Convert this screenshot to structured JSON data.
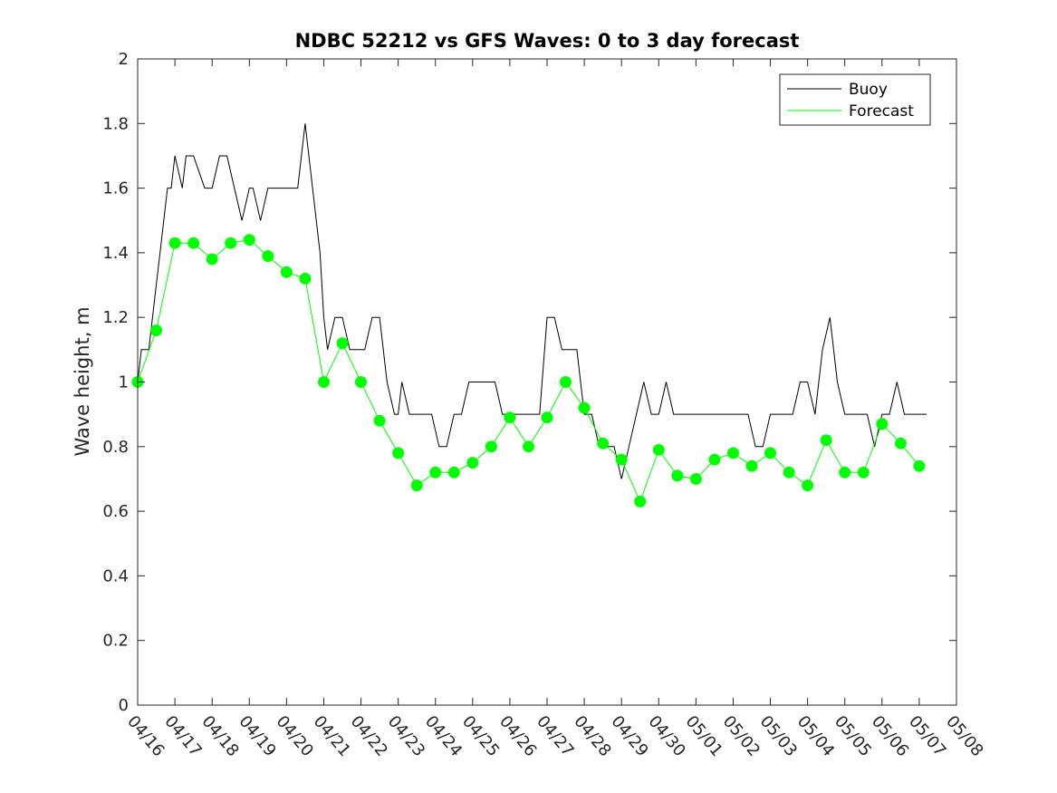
{
  "chart_data": {
    "type": "line",
    "title": "NDBC 52212 vs GFS Waves: 0 to 3 day forecast",
    "xlabel": "",
    "ylabel": "Wave height, m",
    "x_range_days": [
      0,
      22
    ],
    "ylim": [
      0,
      2
    ],
    "y_ticks": [
      0,
      0.2,
      0.4,
      0.6,
      0.8,
      1,
      1.2,
      1.4,
      1.6,
      1.8,
      2
    ],
    "y_tick_labels": [
      "0",
      "0.2",
      "0.4",
      "0.6",
      "0.8",
      "1",
      "1.2",
      "1.4",
      "1.6",
      "1.8",
      "2"
    ],
    "x_tick_labels": [
      "04/16",
      "04/17",
      "04/18",
      "04/19",
      "04/20",
      "04/21",
      "04/22",
      "04/23",
      "04/24",
      "04/25",
      "04/26",
      "04/27",
      "04/28",
      "04/29",
      "04/30",
      "05/01",
      "05/02",
      "05/03",
      "05/04",
      "05/05",
      "05/06",
      "05/07",
      "05/08"
    ],
    "grid": false,
    "legend": {
      "placement": "top-right",
      "entries": [
        "Buoy",
        "Forecast"
      ]
    },
    "colors": {
      "buoy": "#000000",
      "forecast": "#00ff00"
    },
    "series": [
      {
        "name": "Buoy",
        "x": [
          0,
          0.1,
          0.3,
          0.4,
          0.5,
          0.6,
          0.7,
          0.8,
          0.9,
          1.0,
          1.2,
          1.3,
          1.5,
          1.8,
          2.0,
          2.2,
          2.4,
          2.6,
          2.8,
          3.0,
          3.1,
          3.3,
          3.5,
          3.7,
          3.9,
          4.1,
          4.3,
          4.5,
          4.7,
          4.9,
          5.0,
          5.1,
          5.3,
          5.5,
          5.7,
          5.9,
          6.1,
          6.3,
          6.5,
          6.7,
          6.9,
          7.0,
          7.1,
          7.3,
          7.5,
          7.7,
          7.9,
          8.1,
          8.3,
          8.5,
          8.7,
          8.9,
          9.0,
          9.2,
          9.4,
          9.6,
          9.8,
          10.0,
          10.2,
          10.4,
          10.6,
          10.8,
          11.0,
          11.2,
          11.4,
          11.6,
          11.8,
          12.0,
          12.2,
          12.4,
          12.6,
          12.8,
          13.0,
          13.2,
          13.4,
          13.6,
          13.8,
          14.0,
          14.2,
          14.4,
          14.6,
          14.8,
          15.0,
          15.2,
          15.4,
          15.6,
          15.8,
          16.0,
          16.2,
          16.4,
          16.6,
          16.8,
          17.0,
          17.2,
          17.4,
          17.6,
          17.8,
          18.0,
          18.2,
          18.4,
          18.6,
          18.8,
          19.0,
          19.2,
          19.4,
          19.6,
          19.8,
          20.0,
          20.2,
          20.4,
          20.6,
          20.8,
          21.0,
          21.2
        ],
        "values": [
          1.0,
          1.1,
          1.1,
          1.2,
          1.3,
          1.4,
          1.5,
          1.6,
          1.6,
          1.7,
          1.6,
          1.7,
          1.7,
          1.6,
          1.6,
          1.7,
          1.7,
          1.6,
          1.5,
          1.6,
          1.6,
          1.5,
          1.6,
          1.6,
          1.6,
          1.6,
          1.6,
          1.8,
          1.6,
          1.4,
          1.2,
          1.1,
          1.2,
          1.2,
          1.1,
          1.1,
          1.1,
          1.2,
          1.2,
          1.0,
          0.9,
          0.9,
          1.0,
          0.9,
          0.9,
          0.9,
          0.9,
          0.8,
          0.8,
          0.9,
          0.9,
          1.0,
          1.0,
          1.0,
          1.0,
          1.0,
          0.9,
          0.9,
          0.9,
          0.9,
          0.9,
          0.9,
          1.2,
          1.2,
          1.1,
          1.1,
          1.1,
          0.9,
          0.9,
          0.8,
          0.8,
          0.8,
          0.7,
          0.8,
          0.9,
          1.0,
          0.9,
          0.9,
          1.0,
          0.9,
          0.9,
          0.9,
          0.9,
          0.9,
          0.9,
          0.9,
          0.9,
          0.9,
          0.9,
          0.9,
          0.8,
          0.8,
          0.9,
          0.9,
          0.9,
          0.9,
          1.0,
          1.0,
          0.9,
          1.1,
          1.2,
          1.0,
          0.9,
          0.9,
          0.9,
          0.9,
          0.8,
          0.9,
          0.9,
          1.0,
          0.9,
          0.9,
          0.9,
          0.9
        ]
      },
      {
        "name": "Forecast",
        "x": [
          0,
          0.5,
          1.0,
          1.5,
          2.0,
          2.5,
          3.0,
          3.5,
          4.0,
          4.5,
          5.0,
          5.5,
          6.0,
          6.5,
          7.0,
          7.5,
          8.0,
          8.5,
          9.0,
          9.5,
          10.0,
          10.5,
          11.0,
          11.5,
          12.0,
          12.5,
          13.0,
          13.5,
          14.0,
          14.5,
          15.0,
          15.5,
          16.0,
          16.5,
          17.0,
          17.5,
          18.0,
          18.5,
          19.0,
          19.5,
          20.0,
          20.5,
          21.0
        ],
        "values": [
          1.0,
          1.16,
          1.43,
          1.43,
          1.38,
          1.43,
          1.44,
          1.39,
          1.34,
          1.32,
          1.0,
          1.12,
          1.0,
          0.88,
          0.78,
          0.68,
          0.72,
          0.72,
          0.75,
          0.8,
          0.89,
          0.8,
          0.89,
          1.0,
          0.92,
          0.81,
          0.76,
          0.63,
          0.79,
          0.71,
          0.7,
          0.76,
          0.78,
          0.74,
          0.78,
          0.72,
          0.68,
          0.82,
          0.72,
          0.72,
          0.87,
          0.81,
          0.74
        ]
      }
    ]
  }
}
